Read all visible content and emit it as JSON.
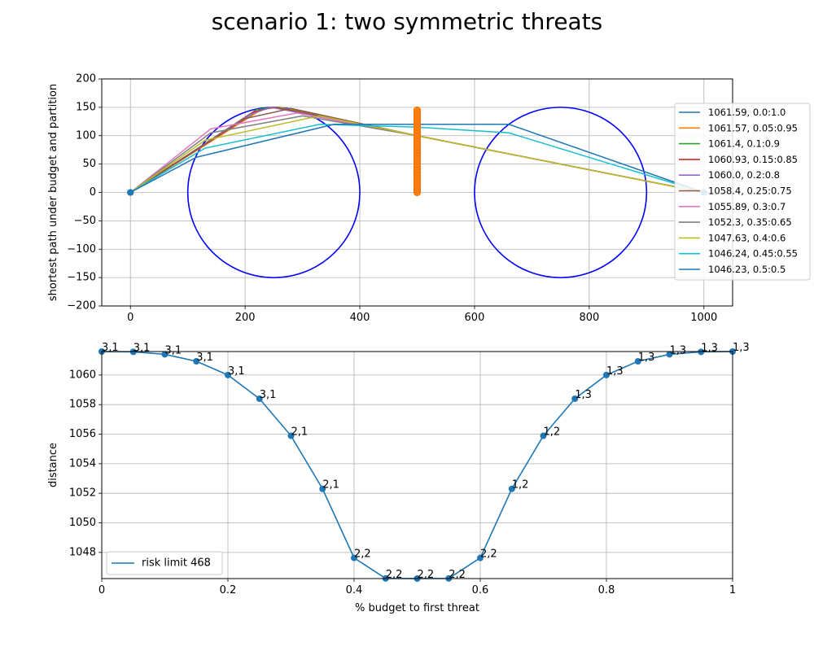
{
  "title": "scenario 1: two symmetric threats",
  "chart_data": [
    {
      "type": "line",
      "xlabel": "",
      "ylabel": "shortest path under budget and partition",
      "xlim": [
        -50,
        1050
      ],
      "ylim": [
        -200,
        200
      ],
      "xticks": [
        0,
        200,
        400,
        600,
        800,
        1000
      ],
      "yticks": [
        -200,
        -150,
        -100,
        -50,
        0,
        50,
        100,
        150,
        200
      ],
      "grid": true,
      "legend_position": "right",
      "circles": [
        {
          "name": "threat 1",
          "cx": 250,
          "cy": 0,
          "r": 150,
          "color": "#0000ff"
        },
        {
          "name": "threat 2",
          "cx": 750,
          "cy": 0,
          "r": 150,
          "color": "#0000ff"
        }
      ],
      "barrier": {
        "x": 500,
        "y0": 0,
        "y1": 145,
        "color": "#ff7f0e"
      },
      "series": [
        {
          "name": "1061.59, 0.0:1.0",
          "color": "#1f77b4",
          "x": [
            0,
            230,
            260,
            500,
            1000
          ],
          "y": [
            0,
            148,
            150,
            100,
            0
          ]
        },
        {
          "name": "1061.57, 0.05:0.95",
          "color": "#ff7f0e",
          "x": [
            0,
            230,
            260,
            500,
            1000
          ],
          "y": [
            0,
            147,
            150,
            100,
            0
          ]
        },
        {
          "name": "1061.4, 0.1:0.9",
          "color": "#2ca02c",
          "x": [
            0,
            220,
            255,
            500,
            1000
          ],
          "y": [
            0,
            146,
            150,
            100,
            0
          ]
        },
        {
          "name": "1060.93, 0.15:0.85",
          "color": "#d62728",
          "x": [
            0,
            215,
            250,
            500,
            1000
          ],
          "y": [
            0,
            142,
            150,
            100,
            0
          ]
        },
        {
          "name": "1060.0, 0.2:0.8",
          "color": "#9467bd",
          "x": [
            0,
            210,
            245,
            500,
            1000
          ],
          "y": [
            0,
            138,
            150,
            100,
            0
          ]
        },
        {
          "name": "1058.4, 0.25:0.75",
          "color": "#8c564b",
          "x": [
            0,
            200,
            280,
            500,
            1000
          ],
          "y": [
            0,
            130,
            148,
            100,
            0
          ]
        },
        {
          "name": "1055.89, 0.3:0.7",
          "color": "#e377c2",
          "x": [
            0,
            140,
            290,
            500,
            1000
          ],
          "y": [
            0,
            112,
            140,
            100,
            0
          ]
        },
        {
          "name": "1052.3, 0.35:0.65",
          "color": "#7f7f7f",
          "x": [
            0,
            140,
            300,
            500,
            1000
          ],
          "y": [
            0,
            105,
            135,
            100,
            0
          ]
        },
        {
          "name": "1047.63, 0.4:0.6",
          "color": "#bcbd22",
          "x": [
            0,
            130,
            330,
            500,
            1000
          ],
          "y": [
            0,
            92,
            135,
            100,
            0
          ]
        },
        {
          "name": "1046.24, 0.45:0.55",
          "color": "#17becf",
          "x": [
            0,
            130,
            330,
            500,
            660,
            1000
          ],
          "y": [
            0,
            78,
            120,
            115,
            105,
            0
          ]
        },
        {
          "name": "1046.23, 0.5:0.5",
          "color": "#1f77b4",
          "x": [
            0,
            115,
            355,
            500,
            660,
            1000
          ],
          "y": [
            0,
            62,
            120,
            120,
            120,
            0
          ]
        }
      ]
    },
    {
      "type": "line",
      "xlabel": "% budget to first threat",
      "ylabel": "distance",
      "xlim": [
        0.0,
        1.0
      ],
      "ylim": [
        1046.23,
        1061.59
      ],
      "xticks": [
        0.0,
        0.2,
        0.4,
        0.6,
        0.8,
        1.0
      ],
      "yticks": [
        1048,
        1050,
        1052,
        1054,
        1056,
        1058,
        1060
      ],
      "grid": true,
      "legend_position": "lower left",
      "series": [
        {
          "name": "risk limit 468",
          "color": "#1f77b4",
          "x": [
            0.0,
            0.05,
            0.1,
            0.15,
            0.2,
            0.25,
            0.3,
            0.35,
            0.4,
            0.45,
            0.5,
            0.55,
            0.6,
            0.65,
            0.7,
            0.75,
            0.8,
            0.85,
            0.9,
            0.95,
            1.0
          ],
          "y": [
            1061.59,
            1061.57,
            1061.4,
            1060.93,
            1060.0,
            1058.4,
            1055.89,
            1052.3,
            1047.63,
            1046.24,
            1046.23,
            1046.24,
            1047.63,
            1052.3,
            1055.89,
            1058.4,
            1060.0,
            1060.93,
            1061.4,
            1061.57,
            1061.59
          ],
          "labels": [
            "3,1",
            "3,1",
            "3,1",
            "3,1",
            "3,1",
            "3,1",
            "2,1",
            "2,1",
            "2,2",
            "2,2",
            "2,2",
            "2,2",
            "2,2",
            "1,2",
            "1,2",
            "1,3",
            "1,3",
            "1,3",
            "1,3",
            "1,3",
            "1,3"
          ]
        }
      ]
    }
  ]
}
